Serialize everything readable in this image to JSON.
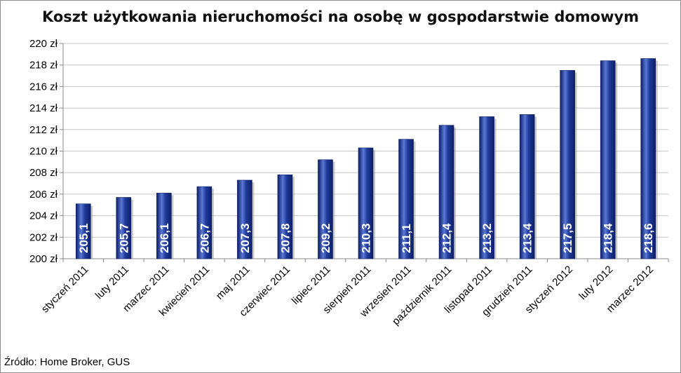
{
  "chart_data": {
    "type": "bar",
    "title": "Koszt użytkowania nieruchomości na osobę w gospodarstwie domowym",
    "categories": [
      "styczeń 2011",
      "luty 2011",
      "marzec 2011",
      "kwiecień 2011",
      "maj 2011",
      "czerwiec 2011",
      "lipiec 2011",
      "sierpień 2011",
      "wrzesień 2011",
      "październik 2011",
      "listopad 2011",
      "grudzień 2011",
      "styczeń 2012",
      "luty 2012",
      "marzec 2012"
    ],
    "series": [
      {
        "values": [
          205.1,
          205.7,
          206.1,
          206.7,
          207.3,
          207.8,
          209.2,
          210.3,
          211.1,
          212.4,
          213.2,
          213.4,
          217.5,
          218.4,
          218.6
        ]
      }
    ],
    "data_labels": [
      "205,1",
      "205,7",
      "206,1",
      "206,7",
      "207,3",
      "207,8",
      "209,2",
      "210,3",
      "211,1",
      "212,4",
      "213,2",
      "213,4",
      "217,5",
      "218,4",
      "218,6"
    ],
    "ylim": [
      200,
      220
    ],
    "yticks": [
      200,
      202,
      204,
      206,
      208,
      210,
      212,
      214,
      216,
      218,
      220
    ],
    "ytick_labels": [
      "200 zł",
      "202 zł",
      "204 zł",
      "206 zł",
      "208 zł",
      "210 zł",
      "212 zł",
      "214 zł",
      "216 zł",
      "218 zł",
      "220 zł"
    ],
    "xlabel": "",
    "ylabel": "",
    "grid": true,
    "legend": "none",
    "colors": {
      "bar_main": "#1f3a9a",
      "bar_dark": "#0d1f66",
      "bar_light": "#5a78d6",
      "grid": "#c6c6c6",
      "axis": "#888888"
    }
  },
  "source": "Źródło: Home Broker, GUS"
}
